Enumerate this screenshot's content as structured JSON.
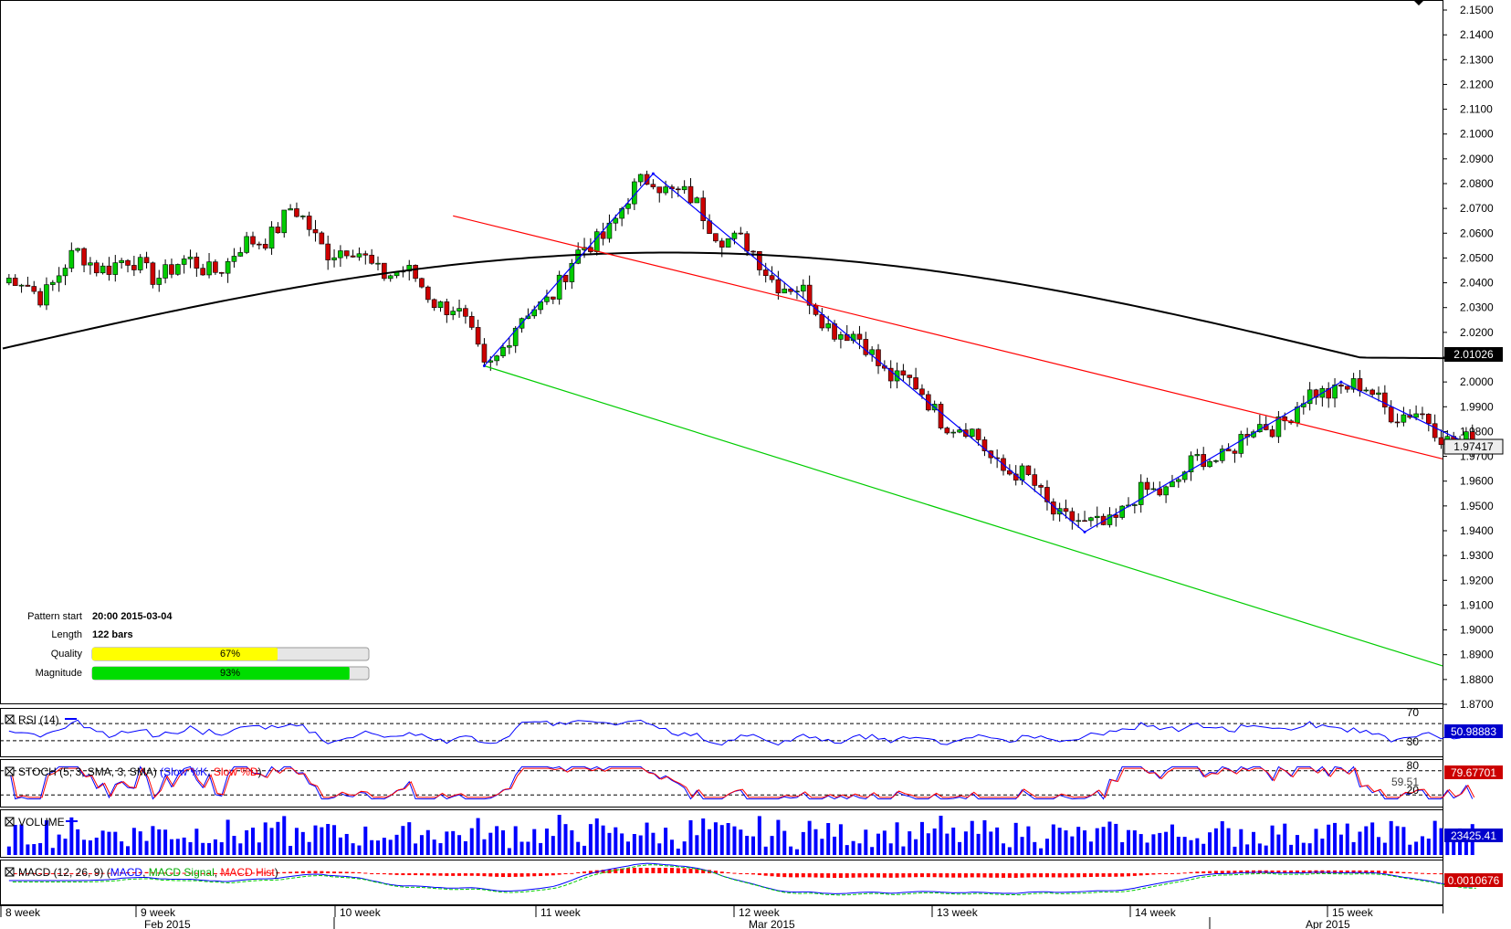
{
  "chart_data": {
    "type": "candlestick",
    "price_axis": {
      "ticks": [
        "2.1500",
        "2.1400",
        "2.1300",
        "2.1200",
        "2.1100",
        "2.1000",
        "2.0900",
        "2.0800",
        "2.0700",
        "2.0600",
        "2.0500",
        "2.0400",
        "2.0300",
        "2.0200",
        "2.0100",
        "2.0000",
        "1.9900",
        "1.9800",
        "1.9700",
        "1.9600",
        "1.9500",
        "1.9400",
        "1.9300",
        "1.9200",
        "1.9100",
        "1.9000",
        "1.8900",
        "1.8800",
        "1.8700"
      ],
      "ylim": [
        1.87,
        2.15
      ]
    },
    "time_axis": {
      "week_labels": [
        "8 week",
        "9 week",
        "10 week",
        "11 week",
        "12 week",
        "13 week",
        "14 week",
        "15 week"
      ],
      "month_labels": [
        "Feb 2015",
        "Mar 2015",
        "Apr 2015"
      ]
    },
    "price_labels": {
      "ma_value": "2.01026",
      "last_price": "1.97417"
    },
    "ma_color": "#000000",
    "resistance_color": "#ff0000",
    "support_color": "#00cc00",
    "zigzag_color": "#0000ff",
    "zigzag_points": [
      {
        "bar": 77,
        "price": 2.0065
      },
      {
        "bar": 104,
        "price": 2.084
      },
      {
        "bar": 173,
        "price": 1.9395
      },
      {
        "bar": 214,
        "price": 2.0
      },
      {
        "bar": 235,
        "price": 1.9742
      }
    ],
    "pattern": {
      "start_label": "Pattern start",
      "start_value": "20:00 2015-03-04",
      "length_label": "Length",
      "length_value": "122 bars",
      "quality_label": "Quality",
      "quality_value": "67%",
      "quality": 0.67,
      "magnitude_label": "Magnitude",
      "magnitude_value": "93%",
      "magnitude": 0.93
    },
    "indicators": {
      "rsi": {
        "label": "RSI (14)",
        "value": "50.98883",
        "levels": [
          "70",
          "30"
        ],
        "color": "#0000ff"
      },
      "stoch": {
        "label": "STOCH (5, 3, SMA, 3, SMA)",
        "k_label": "Slow %K",
        "d_label": "Slow %D",
        "value": "79.67701",
        "second_value": "59.51",
        "levels": [
          "80",
          "20"
        ],
        "k_color": "#0000ff",
        "d_color": "#ff0000"
      },
      "volume": {
        "label": "VOLUME",
        "value": "23425.41",
        "color": "#0000ff"
      },
      "macd": {
        "label": "MACD (12, 26, 9)",
        "macd_label": "MACD",
        "signal_label": "MACD Signal",
        "hist_label": "MACD Hist",
        "value": "0.0010676",
        "macd_color": "#0000ff",
        "signal_color": "#00cc00",
        "hist_color": "#ff0000"
      }
    },
    "candle_up_color": "#00cc00",
    "candle_down_color": "#cc0000"
  }
}
